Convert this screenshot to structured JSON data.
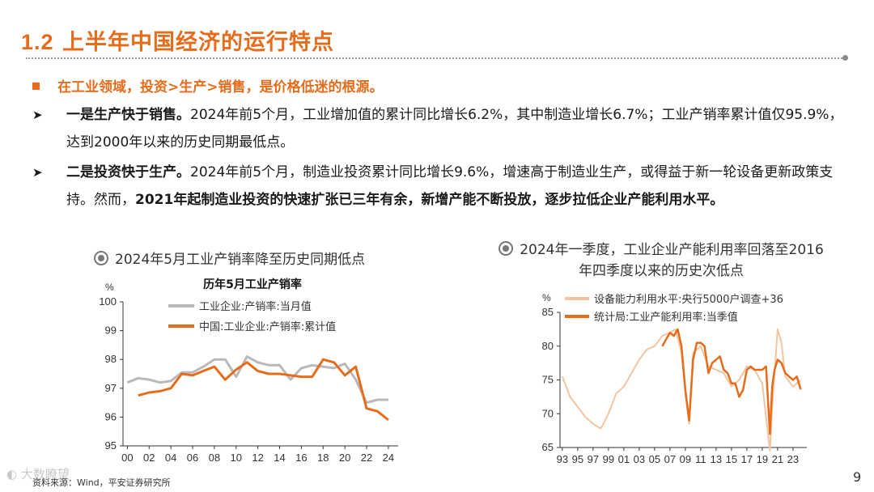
{
  "header": {
    "number": "1.2",
    "title": "上半年中国经济的运行特点"
  },
  "lead": "在工业领域，投资>生产>销售，是价格低迷的根源。",
  "points": [
    {
      "head": "一是生产快于销售。",
      "body": "2024年前5个月，工业增加值的累计同比增长6.2%，其中制造业增长6.7%；工业产销率累计值仅95.9%，达到2000年以来的历史同期最低点。"
    },
    {
      "head": "二是投资快于生产。",
      "body1": "2024年前5个月，制造业投资累计同比增长9.6%，增速高于制造业生产，或得益于新一轮设备更新政策支持。然而，",
      "bold2": "2021年起制造业投资的快速扩张已三年有余，新增产能不断投放，逐步拉低企业产能利用水平。"
    }
  ],
  "chart1_heading": "2024年5月工业产销率降至历史同期低点",
  "chart2_heading": [
    "2024年一季度，工业企业产能利用率回落至2016",
    "年四季度以来的历史次低点"
  ],
  "footer": "资料来源：Wind，平安证券研究所",
  "page_number": "9",
  "watermark": "大数瞭望",
  "colors": {
    "accent": "#e46c1b",
    "gray_series": "#b9b9b9",
    "light_orange": "#f2c4a0"
  },
  "chart_data": [
    {
      "type": "line",
      "title": "历年5月工业产销率",
      "ylabel": "%",
      "ylim": [
        95,
        100
      ],
      "yticks": [
        "95",
        "96",
        "97",
        "98",
        "99",
        "100"
      ],
      "xticks": [
        "00",
        "02",
        "04",
        "06",
        "08",
        "10",
        "12",
        "14",
        "16",
        "18",
        "20",
        "22",
        "24"
      ],
      "series": [
        {
          "name": "工业企业:产销率:当月值",
          "color": "#b9b9b9",
          "x": [
            2000,
            2001,
            2002,
            2003,
            2004,
            2005,
            2006,
            2007,
            2008,
            2009,
            2010,
            2011,
            2012,
            2013,
            2014,
            2015,
            2016,
            2017,
            2018,
            2019,
            2020,
            2021,
            2022,
            2023,
            2024
          ],
          "values": [
            97.2,
            97.35,
            97.3,
            97.2,
            97.25,
            97.55,
            97.55,
            97.75,
            98.0,
            98.0,
            97.4,
            98.1,
            97.9,
            97.8,
            97.8,
            97.3,
            97.7,
            97.8,
            97.75,
            97.7,
            97.85,
            97.3,
            96.5,
            96.6,
            96.6
          ]
        },
        {
          "name": "中国:工业企业:产销率:累计值",
          "color": "#e46c1b",
          "x": [
            2001,
            2002,
            2003,
            2004,
            2005,
            2006,
            2007,
            2008,
            2009,
            2010,
            2011,
            2012,
            2013,
            2014,
            2015,
            2016,
            2017,
            2018,
            2019,
            2020,
            2021,
            2022,
            2023,
            2024
          ],
          "values": [
            96.75,
            96.85,
            96.9,
            97.0,
            97.5,
            97.45,
            97.6,
            97.75,
            97.3,
            97.65,
            97.9,
            97.6,
            97.5,
            97.5,
            97.45,
            97.4,
            97.4,
            98.0,
            97.9,
            97.45,
            97.75,
            96.3,
            96.2,
            95.9
          ]
        }
      ]
    },
    {
      "type": "line",
      "ylabel": "%",
      "ylim": [
        65,
        85
      ],
      "yticks": [
        "65",
        "70",
        "75",
        "80",
        "85"
      ],
      "xticks": [
        "93",
        "95",
        "97",
        "99",
        "01",
        "03",
        "05",
        "07",
        "09",
        "11",
        "13",
        "15",
        "17",
        "19",
        "21",
        "23"
      ],
      "series": [
        {
          "name": "设备能力利用水平:央行5000户调查+36",
          "color": "#f2c4a0",
          "x": [
            1993,
            1994,
            1995,
            1996,
            1997,
            1998,
            1999,
            2000,
            2001,
            2002,
            2003,
            2004,
            2005,
            2006,
            2007,
            2007.7,
            2008.5,
            2009,
            2009.5,
            2010,
            2011,
            2012,
            2013,
            2014,
            2015,
            2016,
            2017,
            2018,
            2019,
            2020,
            2020.3,
            2021,
            2021.5,
            2022,
            2023,
            2024
          ],
          "values": [
            75.5,
            72.5,
            71.0,
            69.5,
            68.5,
            67.8,
            70.0,
            73.0,
            74.0,
            76.0,
            78.0,
            79.5,
            80.0,
            81.5,
            82.0,
            82.5,
            79.0,
            73.0,
            68.5,
            79.0,
            80.0,
            77.0,
            76.5,
            76.0,
            74.0,
            75.0,
            77.0,
            76.5,
            74.5,
            64.5,
            71.0,
            82.5,
            80.5,
            75.5,
            74.0,
            75.0
          ]
        },
        {
          "name": "统计局:工业产能利用率:当季值",
          "color": "#e46c1b",
          "x": [
            2006,
            2006.5,
            2007,
            2007.5,
            2008,
            2008.5,
            2009,
            2009.5,
            2010,
            2010.5,
            2011,
            2011.5,
            2012,
            2012.5,
            2013,
            2013.5,
            2014,
            2014.5,
            2015,
            2015.5,
            2016,
            2016.5,
            2017,
            2017.5,
            2018,
            2018.5,
            2019,
            2019.5,
            2020,
            2020.3,
            2020.6,
            2021,
            2021.5,
            2022,
            2022.5,
            2023,
            2023.5,
            2024
          ],
          "values": [
            80.0,
            81.0,
            82.0,
            81.5,
            82.5,
            80.0,
            73.5,
            69.0,
            78.0,
            80.5,
            80.5,
            80.0,
            76.0,
            77.5,
            78.0,
            78.5,
            76.5,
            76.0,
            74.5,
            74.5,
            72.5,
            73.5,
            76.5,
            77.0,
            76.5,
            76.5,
            76.5,
            77.0,
            67.0,
            74.0,
            76.5,
            78.0,
            77.5,
            76.0,
            75.5,
            75.0,
            75.5,
            73.6
          ]
        }
      ]
    }
  ]
}
